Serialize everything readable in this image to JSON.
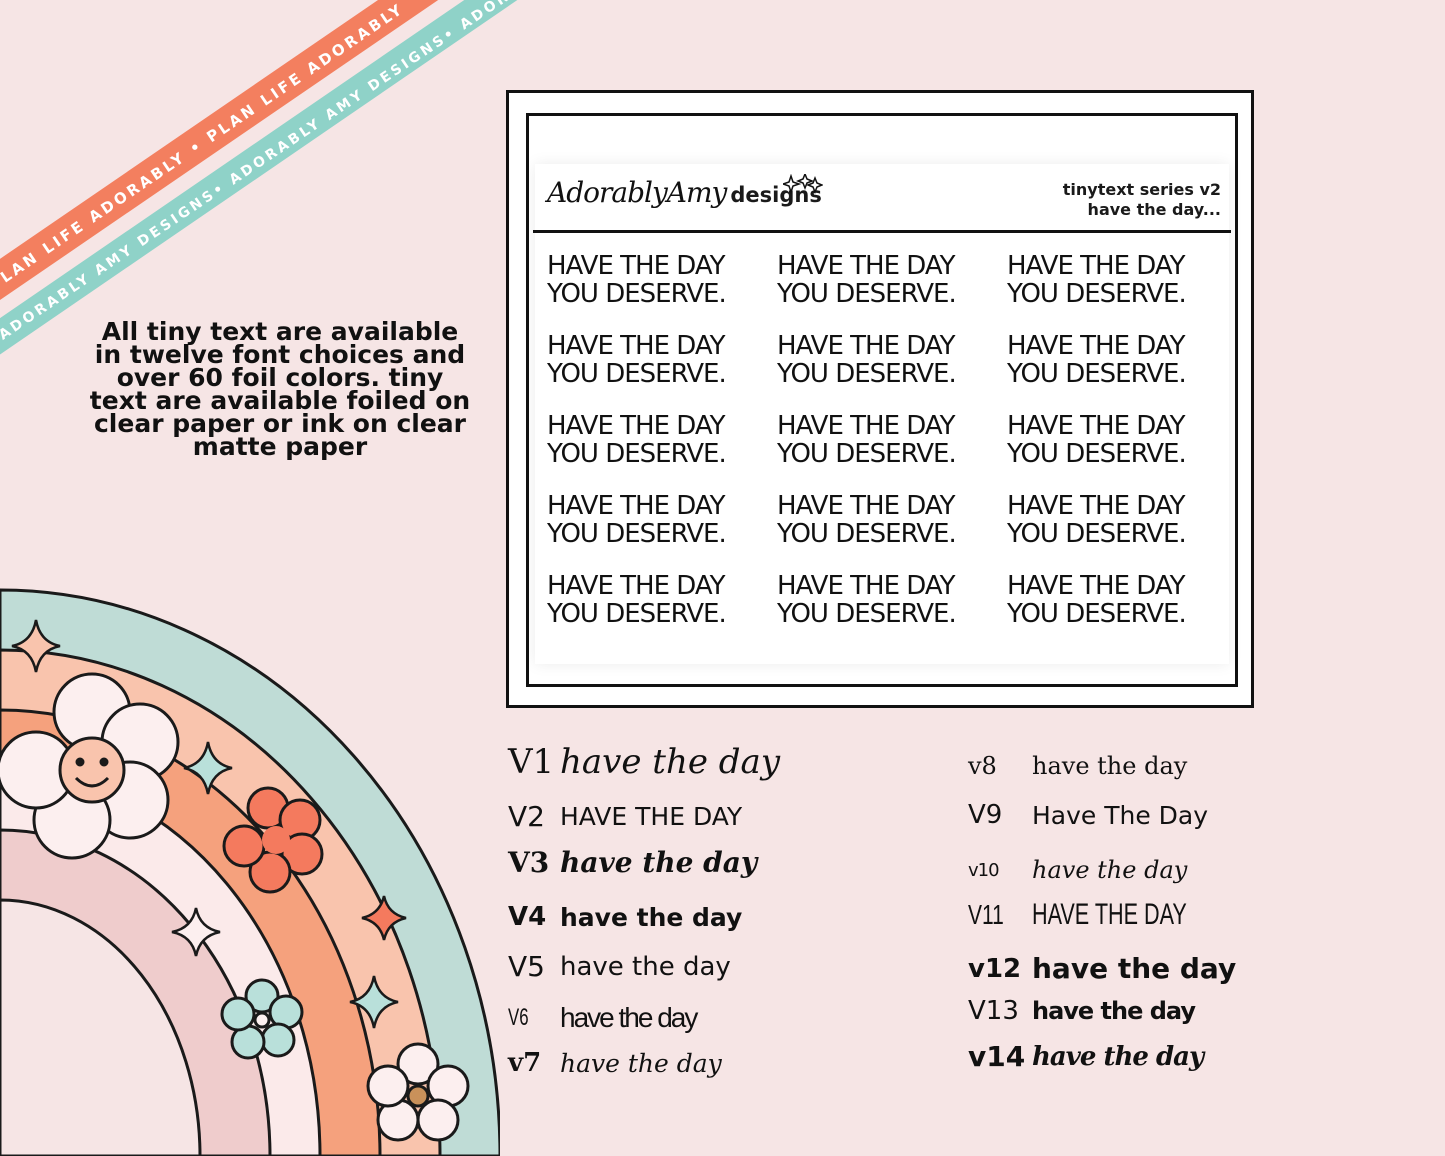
{
  "ribbons": {
    "coral_text": "PLAN LIFE ADORABLY • PLAN LIFE ADORABLY",
    "teal_text": "ADORABLY AMY DESIGNS• ADORABLY AMY DESIGNS• ADORABLY AMY DESIGNS",
    "coral_color": "#f37f5f",
    "teal_color": "#8fd2c8"
  },
  "description": {
    "lines": [
      "All tiny text are available",
      "in twelve font choices and",
      "over 60 foil colors.  tiny",
      "text are available foiled on",
      "clear paper or ink on clear",
      "matte paper"
    ]
  },
  "sheet": {
    "brand_script": "AdorablyAmy",
    "brand_word": "designs",
    "series_line1": "tinytext series v2",
    "series_line2": "have the day...",
    "sticker_line1": "HAVE THE DAY",
    "sticker_line2": "YOU DESERVE."
  },
  "font_versions": [
    {
      "label": "V1",
      "text": "have the day"
    },
    {
      "label": "V2",
      "text": "HAVE THE DAY"
    },
    {
      "label": "V3",
      "text": "have the day"
    },
    {
      "label": "V4",
      "text": "have the day"
    },
    {
      "label": "V5",
      "text": "have the day"
    },
    {
      "label": "V6",
      "text": "have the day"
    },
    {
      "label": "v7",
      "text": "have the day"
    },
    {
      "label": "v8",
      "text": "have the day"
    },
    {
      "label": "V9",
      "text": "Have The Day"
    },
    {
      "label": "v10",
      "text": "have the day"
    },
    {
      "label": "V11",
      "text": "HAVE THE DAY"
    },
    {
      "label": "v12",
      "text": "have the day"
    },
    {
      "label": "V13",
      "text": "have the day"
    },
    {
      "label": "v14",
      "text": "have the day"
    }
  ],
  "colors": {
    "background": "#f6e5e5",
    "rainbow_teal": "#bfdcd6",
    "rainbow_peach": "#f9c4ad",
    "rainbow_orange": "#f5a17d",
    "rainbow_pink": "#efcccc",
    "flower_coral": "#f47a5e",
    "flower_cream": "#fcefef",
    "flower_mint": "#b9e0da"
  }
}
